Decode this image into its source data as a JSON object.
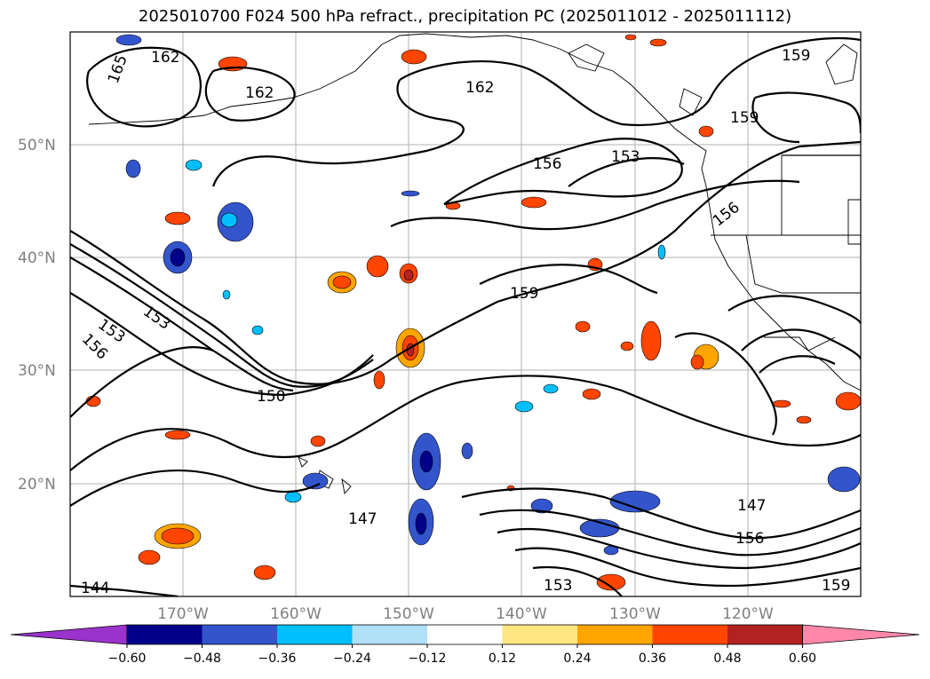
{
  "title": "2025010700 F024 500 hPa refract., precipitation PC (2025011012 - 2025011112)",
  "map": {
    "lat_labels": [
      "50°N",
      "40°N",
      "30°N",
      "20°N"
    ],
    "lon_labels": [
      "170°W",
      "160°W",
      "150°W",
      "140°W",
      "130°W",
      "120°W"
    ],
    "contour_labels": [
      "165",
      "162",
      "162",
      "162",
      "159",
      "159",
      "159",
      "159",
      "156",
      "156",
      "156",
      "156",
      "153",
      "153",
      "153",
      "153",
      "150",
      "147",
      "147",
      "144"
    ]
  },
  "colorbar": {
    "ticks": [
      "−0.60",
      "−0.48",
      "−0.36",
      "−0.24",
      "−0.12",
      "0.12",
      "0.24",
      "0.36",
      "0.48",
      "0.60"
    ],
    "colors": [
      "#9933cc",
      "#00008b",
      "#3355cc",
      "#00bfff",
      "#b0e0f8",
      "#ffffff",
      "#ffe680",
      "#ffa500",
      "#ff4500",
      "#b22222",
      "#ff88aa"
    ]
  }
}
